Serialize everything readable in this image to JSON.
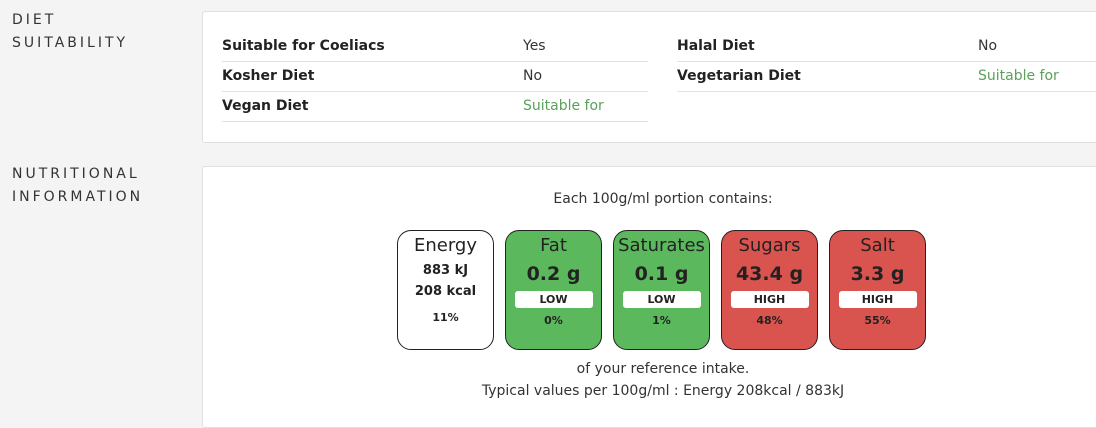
{
  "diet": {
    "label_line1": "DIET",
    "label_line2": "SUITABILITY",
    "items": [
      {
        "name": "Suitable for Coeliacs",
        "value": "Yes"
      },
      {
        "name": "Halal Diet",
        "value": "No"
      },
      {
        "name": "Kosher Diet",
        "value": "No"
      },
      {
        "name": "Vegetarian Diet",
        "value": "Suitable for"
      },
      {
        "name": "Vegan Diet",
        "value": "Suitable for"
      }
    ]
  },
  "nutrition": {
    "label_line1": "NUTRITIONAL",
    "label_line2": "INFORMATION",
    "portion_text": "Each 100g/ml portion contains:",
    "energy": {
      "name": "Energy",
      "kj": "883 kJ",
      "kcal": "208 kcal",
      "percent": "11%"
    },
    "tiles": [
      {
        "name": "Fat",
        "value": "0.2 g",
        "level": "LOW",
        "percent": "0%"
      },
      {
        "name": "Saturates",
        "value": "0.1 g",
        "level": "LOW",
        "percent": "1%"
      },
      {
        "name": "Sugars",
        "value": "43.4 g",
        "level": "HIGH",
        "percent": "48%"
      },
      {
        "name": "Salt",
        "value": "3.3 g",
        "level": "HIGH",
        "percent": "55%"
      }
    ],
    "reference_text": "of your reference intake.",
    "typical_text": "Typical values per 100g/ml : Energy 208kcal / 883kJ"
  },
  "colors": {
    "low": "#5cb85c",
    "high": "#d9534f",
    "suitable_text": "#5aa15a"
  }
}
